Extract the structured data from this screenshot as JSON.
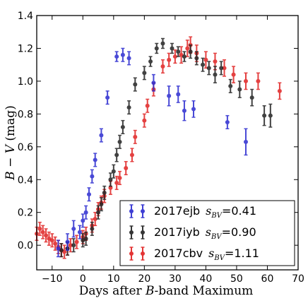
{
  "chart_data": {
    "type": "scatter",
    "xlabel_prefix": "Days after ",
    "xlabel_italic": "B",
    "xlabel_suffix": "-band Maximum",
    "ylabel_italic_b": "B",
    "ylabel_mid": " − ",
    "ylabel_italic_v": "V",
    "ylabel_suffix": " (mag)",
    "xlim": [
      -15,
      70
    ],
    "ylim": [
      -0.15,
      1.4
    ],
    "xticks": [
      "−10",
      "0",
      "10",
      "20",
      "30",
      "40",
      "50",
      "60",
      "70"
    ],
    "xtick_values": [
      -10,
      0,
      10,
      20,
      30,
      40,
      50,
      60,
      70
    ],
    "yticks": [
      "0.0",
      "0.2",
      "0.4",
      "0.6",
      "0.8",
      "1.0",
      "1.2",
      "1.4"
    ],
    "ytick_values": [
      0.0,
      0.2,
      0.4,
      0.6,
      0.8,
      1.0,
      1.2,
      1.4
    ],
    "grid": false,
    "legend_placement": "bottom-right",
    "series": [
      {
        "name": "2017ejb",
        "label_main": "2017ejb",
        "s_value": "=0.41",
        "color": "#2a2ad0",
        "points": [
          {
            "x": -8,
            "y": -0.02,
            "err": 0.05
          },
          {
            "x": -5,
            "y": 0.02,
            "err": 0.05
          },
          {
            "x": -3,
            "y": 0.1,
            "err": 0.05
          },
          {
            "x": -1,
            "y": 0.08,
            "err": 0.04
          },
          {
            "x": 0,
            "y": 0.15,
            "err": 0.04
          },
          {
            "x": 1,
            "y": 0.2,
            "err": 0.04
          },
          {
            "x": 2,
            "y": 0.31,
            "err": 0.04
          },
          {
            "x": 3,
            "y": 0.42,
            "err": 0.04
          },
          {
            "x": 4,
            "y": 0.52,
            "err": 0.04
          },
          {
            "x": 6,
            "y": 0.67,
            "err": 0.04
          },
          {
            "x": 8,
            "y": 0.9,
            "err": 0.04
          },
          {
            "x": 11,
            "y": 1.15,
            "err": 0.03
          },
          {
            "x": 13,
            "y": 1.16,
            "err": 0.04
          },
          {
            "x": 15,
            "y": 1.14,
            "err": 0.04
          },
          {
            "x": 23,
            "y": 0.99,
            "err": 0.05
          },
          {
            "x": 28,
            "y": 0.91,
            "err": 0.06
          },
          {
            "x": 31,
            "y": 0.92,
            "err": 0.05
          },
          {
            "x": 33,
            "y": 0.82,
            "err": 0.06
          },
          {
            "x": 36,
            "y": 0.83,
            "err": 0.05
          },
          {
            "x": 47,
            "y": 0.75,
            "err": 0.04
          },
          {
            "x": 53,
            "y": 0.63,
            "err": 0.08
          }
        ]
      },
      {
        "name": "2017iyb",
        "label_main": "2017iyb",
        "s_value": "=0.90",
        "color": "#202020",
        "points": [
          {
            "x": -7,
            "y": -0.03,
            "err": 0.04
          },
          {
            "x": -5,
            "y": -0.02,
            "err": 0.04
          },
          {
            "x": -3,
            "y": 0.0,
            "err": 0.04
          },
          {
            "x": 0,
            "y": 0.03,
            "err": 0.04
          },
          {
            "x": 1,
            "y": 0.04,
            "err": 0.04
          },
          {
            "x": 3,
            "y": 0.1,
            "err": 0.04
          },
          {
            "x": 5,
            "y": 0.2,
            "err": 0.04
          },
          {
            "x": 6,
            "y": 0.25,
            "err": 0.04
          },
          {
            "x": 7,
            "y": 0.32,
            "err": 0.04
          },
          {
            "x": 9,
            "y": 0.4,
            "err": 0.04
          },
          {
            "x": 10,
            "y": 0.45,
            "err": 0.04
          },
          {
            "x": 11,
            "y": 0.55,
            "err": 0.04
          },
          {
            "x": 12,
            "y": 0.63,
            "err": 0.04
          },
          {
            "x": 13,
            "y": 0.72,
            "err": 0.04
          },
          {
            "x": 15,
            "y": 0.84,
            "err": 0.04
          },
          {
            "x": 17,
            "y": 0.98,
            "err": 0.04
          },
          {
            "x": 20,
            "y": 1.05,
            "err": 0.04
          },
          {
            "x": 22,
            "y": 1.12,
            "err": 0.03
          },
          {
            "x": 24,
            "y": 1.2,
            "err": 0.03
          },
          {
            "x": 26,
            "y": 1.23,
            "err": 0.03
          },
          {
            "x": 29,
            "y": 1.2,
            "err": 0.03
          },
          {
            "x": 31,
            "y": 1.18,
            "err": 0.03
          },
          {
            "x": 33,
            "y": 1.15,
            "err": 0.03
          },
          {
            "x": 35,
            "y": 1.18,
            "err": 0.04
          },
          {
            "x": 37,
            "y": 1.14,
            "err": 0.04
          },
          {
            "x": 39,
            "y": 1.1,
            "err": 0.04
          },
          {
            "x": 41,
            "y": 1.08,
            "err": 0.04
          },
          {
            "x": 43,
            "y": 1.04,
            "err": 0.05
          },
          {
            "x": 45,
            "y": 1.08,
            "err": 0.04
          },
          {
            "x": 48,
            "y": 0.97,
            "err": 0.04
          },
          {
            "x": 51,
            "y": 0.95,
            "err": 0.05
          },
          {
            "x": 55,
            "y": 0.9,
            "err": 0.05
          },
          {
            "x": 59,
            "y": 0.79,
            "err": 0.06
          },
          {
            "x": 61,
            "y": 0.79,
            "err": 0.07
          }
        ]
      },
      {
        "name": "2017cbv",
        "label_main": "2017cbv",
        "s_value": "=1.11",
        "color": "#e02020",
        "points": [
          {
            "x": -15,
            "y": 0.07,
            "err": 0.04
          },
          {
            "x": -14,
            "y": 0.1,
            "err": 0.04
          },
          {
            "x": -13,
            "y": 0.08,
            "err": 0.04
          },
          {
            "x": -12,
            "y": 0.06,
            "err": 0.04
          },
          {
            "x": -11,
            "y": 0.04,
            "err": 0.04
          },
          {
            "x": -10,
            "y": 0.03,
            "err": 0.04
          },
          {
            "x": -9,
            "y": 0.01,
            "err": 0.04
          },
          {
            "x": -8,
            "y": -0.01,
            "err": 0.04
          },
          {
            "x": -7,
            "y": -0.03,
            "err": 0.04
          },
          {
            "x": -6,
            "y": -0.04,
            "err": 0.04
          },
          {
            "x": -5,
            "y": -0.02,
            "err": 0.04
          },
          {
            "x": -4,
            "y": 0.0,
            "err": 0.04
          },
          {
            "x": -2,
            "y": 0.02,
            "err": 0.04
          },
          {
            "x": 0,
            "y": 0.05,
            "err": 0.04
          },
          {
            "x": 1,
            "y": 0.07,
            "err": 0.04
          },
          {
            "x": 3,
            "y": 0.12,
            "err": 0.04
          },
          {
            "x": 4,
            "y": 0.16,
            "err": 0.04
          },
          {
            "x": 5,
            "y": 0.22,
            "err": 0.04
          },
          {
            "x": 6,
            "y": 0.26,
            "err": 0.04
          },
          {
            "x": 7,
            "y": 0.3,
            "err": 0.04
          },
          {
            "x": 9,
            "y": 0.35,
            "err": 0.04
          },
          {
            "x": 11,
            "y": 0.38,
            "err": 0.04
          },
          {
            "x": 12,
            "y": 0.41,
            "err": 0.04
          },
          {
            "x": 14,
            "y": 0.47,
            "err": 0.04
          },
          {
            "x": 16,
            "y": 0.55,
            "err": 0.04
          },
          {
            "x": 17,
            "y": 0.66,
            "err": 0.04
          },
          {
            "x": 20,
            "y": 0.76,
            "err": 0.04
          },
          {
            "x": 21,
            "y": 0.85,
            "err": 0.04
          },
          {
            "x": 23,
            "y": 0.95,
            "err": 0.04
          },
          {
            "x": 26,
            "y": 1.09,
            "err": 0.04
          },
          {
            "x": 28,
            "y": 1.13,
            "err": 0.04
          },
          {
            "x": 30,
            "y": 1.15,
            "err": 0.04
          },
          {
            "x": 32,
            "y": 1.16,
            "err": 0.05
          },
          {
            "x": 34,
            "y": 1.2,
            "err": 0.05
          },
          {
            "x": 35,
            "y": 1.22,
            "err": 0.05
          },
          {
            "x": 37,
            "y": 1.17,
            "err": 0.05
          },
          {
            "x": 40,
            "y": 1.13,
            "err": 0.05
          },
          {
            "x": 43,
            "y": 1.12,
            "err": 0.05
          },
          {
            "x": 46,
            "y": 1.08,
            "err": 0.05
          },
          {
            "x": 49,
            "y": 1.04,
            "err": 0.05
          },
          {
            "x": 53,
            "y": 1.0,
            "err": 0.05
          },
          {
            "x": 57,
            "y": 1.0,
            "err": 0.05
          },
          {
            "x": 64,
            "y": 0.94,
            "err": 0.05
          }
        ]
      }
    ]
  }
}
